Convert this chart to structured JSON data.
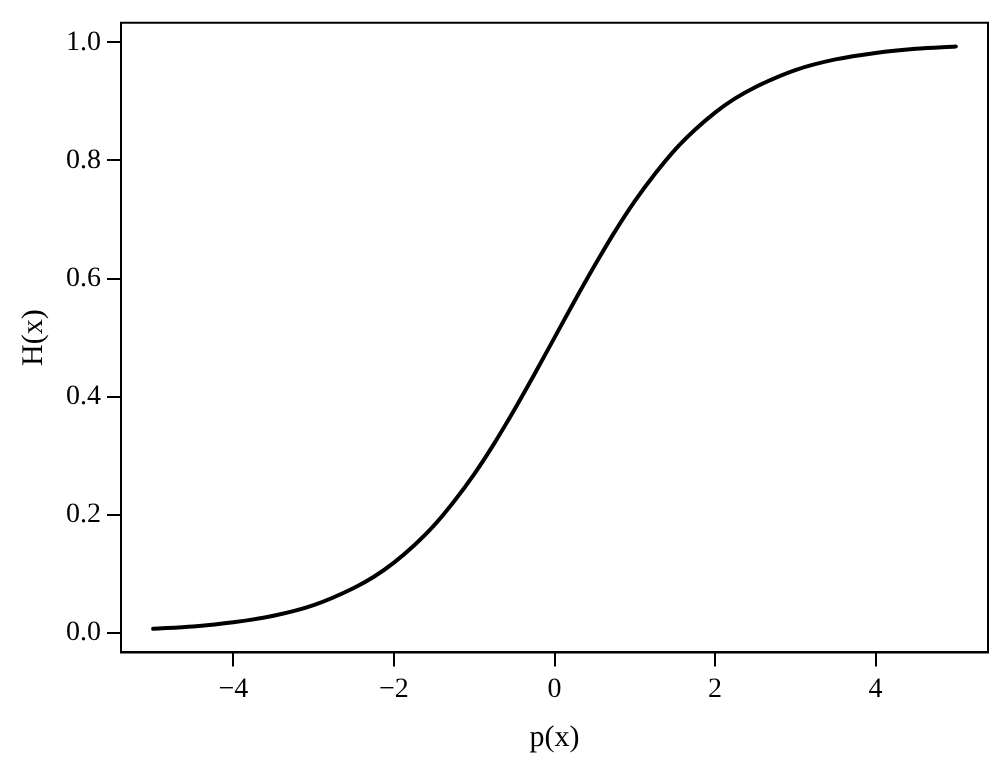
{
  "chart_data": {
    "type": "line",
    "xlabel": "p(x)",
    "ylabel": "H(x)",
    "series": [
      {
        "color": "#000000",
        "x": [
          -5,
          -4.5,
          -4,
          -3.5,
          -3,
          -2.5,
          -2.25,
          -2,
          -1.75,
          -1.5,
          -1.25,
          -1,
          -0.75,
          -0.5,
          -0.25,
          0,
          0.25,
          0.5,
          0.75,
          1,
          1.25,
          1.5,
          1.75,
          2,
          2.25,
          2.5,
          3,
          3.5,
          4,
          4.5,
          5
        ],
        "values": [
          0.007,
          0.011,
          0.018,
          0.029,
          0.047,
          0.076,
          0.095,
          0.119,
          0.148,
          0.182,
          0.223,
          0.269,
          0.321,
          0.378,
          0.438,
          0.5,
          0.562,
          0.622,
          0.679,
          0.731,
          0.777,
          0.818,
          0.852,
          0.881,
          0.905,
          0.924,
          0.953,
          0.971,
          0.982,
          0.989,
          0.993
        ]
      }
    ],
    "xlim": [
      -5.4,
      5.4
    ],
    "ylim": [
      -0.033,
      1.033
    ],
    "xticks": [
      {
        "value": -4,
        "label": "−4"
      },
      {
        "value": -2,
        "label": "−2"
      },
      0,
      2,
      4
    ],
    "yticks": [
      {
        "value": 0,
        "label": "0.0"
      },
      {
        "value": 0.2,
        "label": "0.2"
      },
      {
        "value": 0.4,
        "label": "0.4"
      },
      {
        "value": 0.6,
        "label": "0.6"
      },
      {
        "value": 0.8,
        "label": "0.8"
      },
      {
        "value": 1,
        "label": "1.0"
      }
    ],
    "grid": false,
    "legend": false,
    "marker": "none",
    "line_style": "solid"
  }
}
